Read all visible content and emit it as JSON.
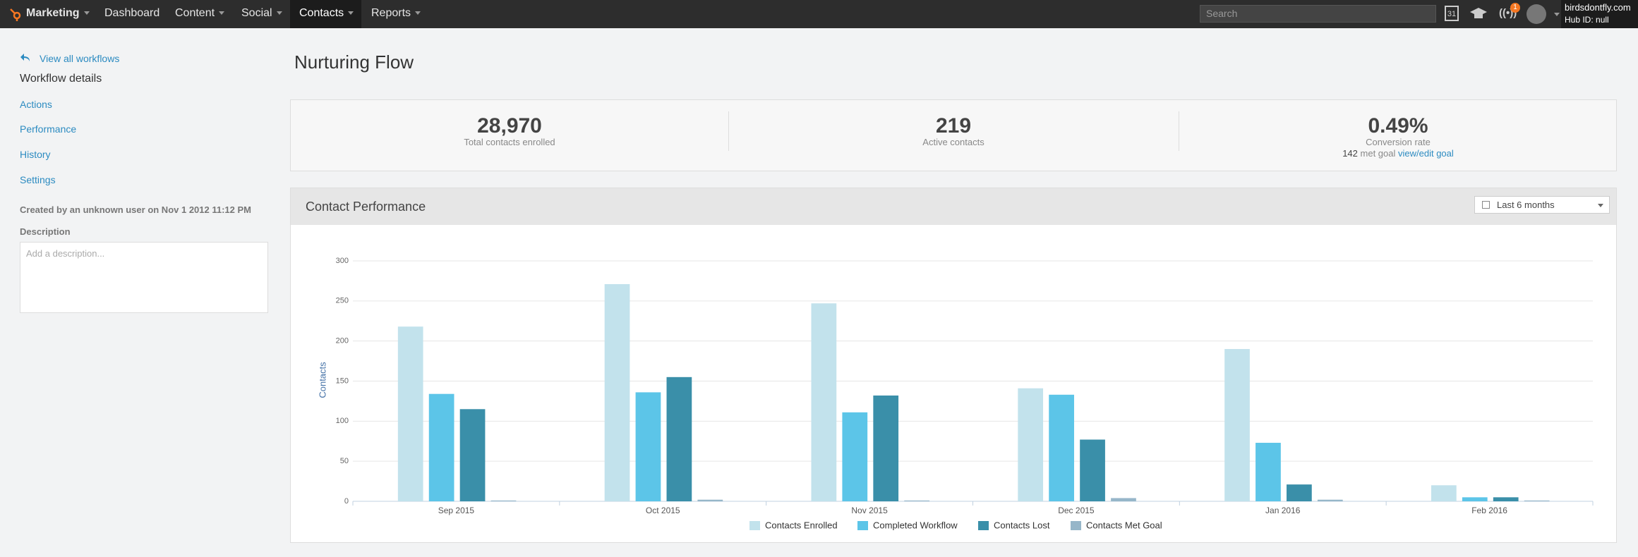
{
  "nav": {
    "brand": "Marketing",
    "items": [
      "Dashboard",
      "Content",
      "Social",
      "Contacts",
      "Reports"
    ],
    "search": "Search",
    "calendar": "31",
    "badge": "1",
    "portal": "birdsdontfly.com",
    "hub": "Hub ID: null"
  },
  "sidebar": {
    "back": "View all workflows",
    "heading": "Workflow details",
    "links": [
      "Actions",
      "Performance",
      "History",
      "Settings"
    ],
    "created": "Created by an unknown user on Nov 1 2012 11:12 PM",
    "description_label": "Description",
    "description_placeholder": "Add a description..."
  },
  "page_title": "Nurturing Flow",
  "stats": [
    {
      "value": "28,970",
      "label": "Total contacts enrolled"
    },
    {
      "value": "219",
      "label": "Active contacts"
    },
    {
      "value": "0.49%",
      "label": "Conversion rate",
      "note_count": "142",
      "note_text": "met goal",
      "note_link": "view/edit goal"
    }
  ],
  "range": "Last 6 months",
  "chart_data": {
    "type": "bar",
    "title": "Contact Performance",
    "ylabel": "Contacts",
    "categories": [
      "Sep 2015",
      "Oct 2015",
      "Nov 2015",
      "Dec 2015",
      "Jan 2016",
      "Feb 2016"
    ],
    "series": [
      {
        "name": "Contacts Enrolled",
        "color": "#c2e2ec",
        "values": [
          218,
          271,
          247,
          141,
          190,
          20
        ]
      },
      {
        "name": "Completed Workflow",
        "color": "#5cc5e8",
        "values": [
          134,
          136,
          111,
          133,
          73,
          5
        ]
      },
      {
        "name": "Contacts Lost",
        "color": "#3a8fa9",
        "values": [
          115,
          155,
          132,
          77,
          21,
          5
        ]
      },
      {
        "name": "Contacts Met Goal",
        "color": "#96b6c9",
        "values": [
          1,
          2,
          1,
          4,
          2,
          1
        ]
      }
    ],
    "ylim": [
      0,
      300
    ],
    "yticks": [
      0,
      50,
      100,
      150,
      200,
      250,
      300
    ],
    "grid": true,
    "legend": "bottom"
  }
}
